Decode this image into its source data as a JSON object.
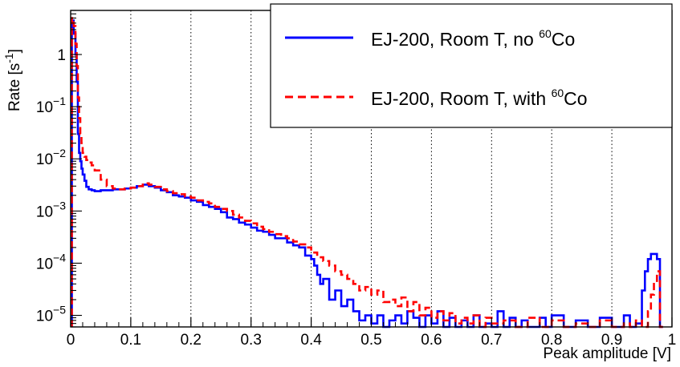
{
  "chart_data": {
    "type": "line",
    "title": "",
    "xlabel": "Peak amplitude [V]",
    "ylabel": "Rate [s",
    "ylabel_sup": "-1",
    "ylabel_tail": "]",
    "xlim": [
      0,
      1
    ],
    "ylim": [
      6e-06,
      7
    ],
    "yscale": "log",
    "x_ticks": [
      "0",
      "0.1",
      "0.2",
      "0.3",
      "0.4",
      "0.5",
      "0.6",
      "0.7",
      "0.8",
      "0.9",
      "1"
    ],
    "y_ticks": [
      {
        "base": "1",
        "exp": "",
        "value": 1
      },
      {
        "base": "10",
        "exp": "−1",
        "value": 0.1
      },
      {
        "base": "10",
        "exp": "−2",
        "value": 0.01
      },
      {
        "base": "10",
        "exp": "−3",
        "value": 0.001
      },
      {
        "base": "10",
        "exp": "−4",
        "value": 0.0001
      },
      {
        "base": "10",
        "exp": "−5",
        "value": 1e-05
      }
    ],
    "grid": "vertical dotted",
    "legend_position": "top-right",
    "series": [
      {
        "name_main": "EJ-200, Room T, no ",
        "name_sup": "60",
        "name_tail": "Co",
        "color": "#0000ff",
        "style": "solid",
        "points": [
          [
            0.002,
            4.5
          ],
          [
            0.005,
            2.5
          ],
          [
            0.008,
            1.0
          ],
          [
            0.01,
            0.3
          ],
          [
            0.012,
            0.03
          ],
          [
            0.014,
            0.013
          ],
          [
            0.016,
            0.009
          ],
          [
            0.018,
            0.0065
          ],
          [
            0.02,
            0.005
          ],
          [
            0.023,
            0.0038
          ],
          [
            0.026,
            0.0029
          ],
          [
            0.03,
            0.0026
          ],
          [
            0.035,
            0.0025
          ],
          [
            0.04,
            0.0024
          ],
          [
            0.05,
            0.0025
          ],
          [
            0.06,
            0.0025
          ],
          [
            0.07,
            0.0026
          ],
          [
            0.08,
            0.0026
          ],
          [
            0.09,
            0.0027
          ],
          [
            0.1,
            0.0028
          ],
          [
            0.11,
            0.003
          ],
          [
            0.12,
            0.0032
          ],
          [
            0.13,
            0.003
          ],
          [
            0.14,
            0.0028
          ],
          [
            0.15,
            0.0025
          ],
          [
            0.16,
            0.0023
          ],
          [
            0.17,
            0.002
          ],
          [
            0.18,
            0.0019
          ],
          [
            0.19,
            0.0018
          ],
          [
            0.2,
            0.0016
          ],
          [
            0.21,
            0.0015
          ],
          [
            0.22,
            0.0013
          ],
          [
            0.23,
            0.0012
          ],
          [
            0.24,
            0.0011
          ],
          [
            0.25,
            0.00095
          ],
          [
            0.26,
            0.00075
          ],
          [
            0.27,
            0.0007
          ],
          [
            0.28,
            0.0006
          ],
          [
            0.29,
            0.00055
          ],
          [
            0.3,
            0.00048
          ],
          [
            0.31,
            0.00042
          ],
          [
            0.32,
            0.0004
          ],
          [
            0.33,
            0.00035
          ],
          [
            0.34,
            0.0003
          ],
          [
            0.35,
            0.0003
          ],
          [
            0.36,
            0.00025
          ],
          [
            0.37,
            0.00022
          ],
          [
            0.38,
            0.0002
          ],
          [
            0.39,
            0.00014
          ],
          [
            0.4,
            0.00012
          ],
          [
            0.405,
            9e-05
          ],
          [
            0.41,
            6e-05
          ],
          [
            0.415,
            4e-05
          ],
          [
            0.42,
            5e-05
          ],
          [
            0.43,
            2e-05
          ],
          [
            0.44,
            3e-05
          ],
          [
            0.45,
            1.5e-05
          ],
          [
            0.46,
            2e-05
          ],
          [
            0.47,
            1.2e-05
          ],
          [
            0.48,
            8e-06
          ],
          [
            0.49,
            1e-05
          ],
          [
            0.5,
            7e-06
          ],
          [
            0.51,
            1e-05
          ],
          [
            0.52,
            6e-06
          ],
          [
            0.53,
            8e-06
          ],
          [
            0.54,
            1e-05
          ],
          [
            0.55,
            7e-06
          ],
          [
            0.56,
            1.2e-05
          ],
          [
            0.57,
            9e-06
          ],
          [
            0.58,
            6e-06
          ],
          [
            0.59,
            1e-05
          ],
          [
            0.6,
            7e-06
          ],
          [
            0.61,
            1.2e-05
          ],
          [
            0.62,
            6e-06
          ],
          [
            0.63,
            9e-06
          ],
          [
            0.64,
            6e-06
          ],
          [
            0.65,
            8e-06
          ],
          [
            0.66,
            6e-06
          ],
          [
            0.67,
            1e-05
          ],
          [
            0.68,
            6e-06
          ],
          [
            0.69,
            7e-06
          ],
          [
            0.7,
            6e-06
          ],
          [
            0.71,
            1.2e-05
          ],
          [
            0.72,
            6e-06
          ],
          [
            0.73,
            9e-06
          ],
          [
            0.74,
            6e-06
          ],
          [
            0.75,
            8e-06
          ],
          [
            0.76,
            6e-06
          ],
          [
            0.78,
            9e-06
          ],
          [
            0.79,
            6e-06
          ],
          [
            0.8,
            1e-05
          ],
          [
            0.82,
            6e-06
          ],
          [
            0.84,
            8e-06
          ],
          [
            0.86,
            6e-06
          ],
          [
            0.88,
            9e-06
          ],
          [
            0.9,
            6e-06
          ],
          [
            0.92,
            1e-05
          ],
          [
            0.93,
            6e-06
          ],
          [
            0.94,
            7e-06
          ],
          [
            0.95,
            3e-05
          ],
          [
            0.955,
            7e-05
          ],
          [
            0.96,
            0.00012
          ],
          [
            0.965,
            0.00015
          ],
          [
            0.97,
            0.00015
          ],
          [
            0.975,
            0.00012
          ],
          [
            0.98,
            6e-06
          ]
        ]
      },
      {
        "name_main": "EJ-200, Room T, with ",
        "name_sup": "60",
        "name_tail": "Co",
        "color": "#ff0000",
        "style": "dashed",
        "points": [
          [
            0.002,
            5.0
          ],
          [
            0.005,
            3.5
          ],
          [
            0.008,
            1.6
          ],
          [
            0.01,
            0.6
          ],
          [
            0.012,
            0.15
          ],
          [
            0.014,
            0.06
          ],
          [
            0.016,
            0.03
          ],
          [
            0.018,
            0.02
          ],
          [
            0.02,
            0.013
          ],
          [
            0.023,
            0.011
          ],
          [
            0.026,
            0.0095
          ],
          [
            0.03,
            0.0085
          ],
          [
            0.035,
            0.0075
          ],
          [
            0.04,
            0.006
          ],
          [
            0.05,
            0.004
          ],
          [
            0.06,
            0.003
          ],
          [
            0.07,
            0.0027
          ],
          [
            0.08,
            0.0026
          ],
          [
            0.09,
            0.0027
          ],
          [
            0.1,
            0.0028
          ],
          [
            0.11,
            0.003
          ],
          [
            0.12,
            0.0034
          ],
          [
            0.13,
            0.0032
          ],
          [
            0.14,
            0.0029
          ],
          [
            0.15,
            0.0026
          ],
          [
            0.16,
            0.0024
          ],
          [
            0.17,
            0.0022
          ],
          [
            0.18,
            0.0021
          ],
          [
            0.19,
            0.0019
          ],
          [
            0.2,
            0.0018
          ],
          [
            0.21,
            0.0016
          ],
          [
            0.22,
            0.0015
          ],
          [
            0.23,
            0.0014
          ],
          [
            0.24,
            0.0012
          ],
          [
            0.25,
            0.0011
          ],
          [
            0.26,
            0.001
          ],
          [
            0.27,
            0.00085
          ],
          [
            0.28,
            0.00075
          ],
          [
            0.29,
            0.00065
          ],
          [
            0.3,
            0.00058
          ],
          [
            0.31,
            0.0005
          ],
          [
            0.32,
            0.00045
          ],
          [
            0.33,
            0.0004
          ],
          [
            0.34,
            0.00036
          ],
          [
            0.35,
            0.00033
          ],
          [
            0.36,
            0.0003
          ],
          [
            0.37,
            0.00026
          ],
          [
            0.38,
            0.00023
          ],
          [
            0.39,
            0.0002
          ],
          [
            0.4,
            0.00016
          ],
          [
            0.41,
            0.00013
          ],
          [
            0.42,
            0.00011
          ],
          [
            0.43,
            9e-05
          ],
          [
            0.44,
            7e-05
          ],
          [
            0.45,
            6e-05
          ],
          [
            0.46,
            5e-05
          ],
          [
            0.47,
            4e-05
          ],
          [
            0.48,
            3e-05
          ],
          [
            0.49,
            3.5e-05
          ],
          [
            0.5,
            2.5e-05
          ],
          [
            0.51,
            3e-05
          ],
          [
            0.52,
            1.8e-05
          ],
          [
            0.53,
            2e-05
          ],
          [
            0.54,
            1.5e-05
          ],
          [
            0.55,
            2.2e-05
          ],
          [
            0.56,
            1.2e-05
          ],
          [
            0.57,
            1.8e-05
          ],
          [
            0.58,
            1e-05
          ],
          [
            0.59,
            1.4e-05
          ],
          [
            0.6,
            9e-06
          ],
          [
            0.61,
            1.2e-05
          ],
          [
            0.62,
            8e-06
          ],
          [
            0.63,
            1.1e-05
          ],
          [
            0.64,
            7e-06
          ],
          [
            0.65,
            9e-06
          ],
          [
            0.66,
            7e-06
          ],
          [
            0.67,
            1e-05
          ],
          [
            0.68,
            6e-06
          ],
          [
            0.69,
            9e-06
          ],
          [
            0.7,
            7e-06
          ],
          [
            0.72,
            8e-06
          ],
          [
            0.74,
            6e-06
          ],
          [
            0.76,
            9e-06
          ],
          [
            0.78,
            6e-06
          ],
          [
            0.8,
            8e-06
          ],
          [
            0.82,
            6e-06
          ],
          [
            0.84,
            7e-06
          ],
          [
            0.86,
            6e-06
          ],
          [
            0.88,
            8e-06
          ],
          [
            0.9,
            6e-06
          ],
          [
            0.92,
            7e-06
          ],
          [
            0.93,
            6e-06
          ],
          [
            0.94,
            8e-06
          ],
          [
            0.95,
            6e-06
          ],
          [
            0.96,
            1.2e-05
          ],
          [
            0.965,
            2.5e-05
          ],
          [
            0.97,
            4e-05
          ],
          [
            0.975,
            7e-05
          ],
          [
            0.98,
            6e-06
          ]
        ]
      }
    ]
  }
}
